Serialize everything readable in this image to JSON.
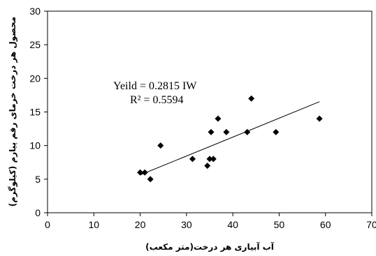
{
  "chart_data": {
    "type": "scatter",
    "title": "",
    "xlabel": "آب آبیاری هر درخت(متر مکعب)",
    "ylabel": "محصول هر درخت خرمای رقم پیارم (کیلوگرم)",
    "xlim": [
      0,
      70
    ],
    "ylim": [
      0,
      30
    ],
    "x_ticks": [
      "0",
      "10",
      "20",
      "30",
      "40",
      "50",
      "60",
      "70"
    ],
    "y_ticks": [
      "0",
      "5",
      "10",
      "15",
      "20",
      "25",
      "30"
    ],
    "grid": false,
    "legend": "none",
    "marker_color": "#000000",
    "trendline_color": "#000000",
    "series": [
      {
        "points": [
          {
            "x": 20.0,
            "y": 6
          },
          {
            "x": 21.0,
            "y": 6
          },
          {
            "x": 22.2,
            "y": 5
          },
          {
            "x": 24.4,
            "y": 10
          },
          {
            "x": 31.3,
            "y": 8
          },
          {
            "x": 34.5,
            "y": 7
          },
          {
            "x": 35.0,
            "y": 8
          },
          {
            "x": 35.3,
            "y": 12
          },
          {
            "x": 35.8,
            "y": 8
          },
          {
            "x": 36.8,
            "y": 14
          },
          {
            "x": 38.6,
            "y": 12
          },
          {
            "x": 43.1,
            "y": 12
          },
          {
            "x": 44.0,
            "y": 17
          },
          {
            "x": 49.3,
            "y": 12
          },
          {
            "x": 58.7,
            "y": 14
          }
        ]
      }
    ],
    "trendline": {
      "slope": 0.2815,
      "x_start": 20.0,
      "x_end": 58.7
    },
    "annotations": [
      "Yeild = 0.2815 IW",
      "R² = 0.5594"
    ]
  }
}
